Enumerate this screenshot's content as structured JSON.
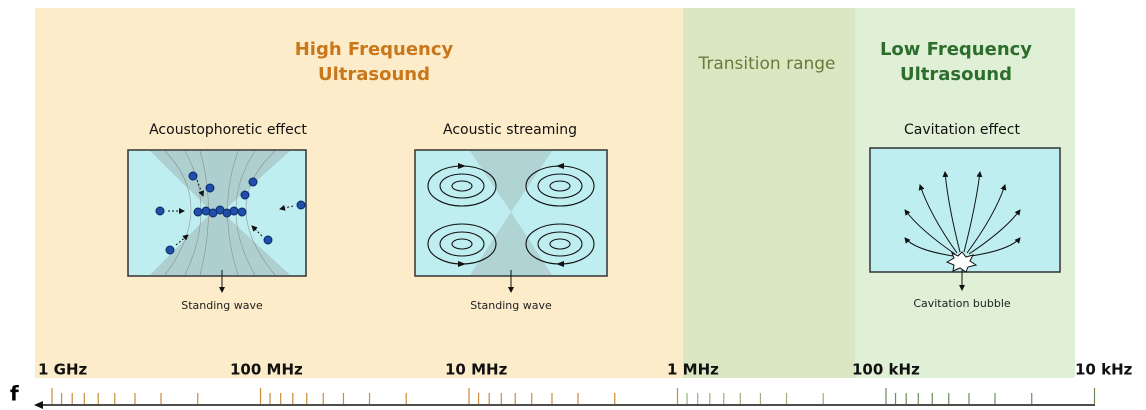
{
  "high_frequency": {
    "title": [
      "High Frequency",
      "Ultrasound"
    ],
    "panels": [
      {
        "title": "Acoustophoretic effect",
        "caption": "Standing wave"
      },
      {
        "title": "Acoustic streaming",
        "caption": "Standing wave"
      }
    ]
  },
  "transition": {
    "title": "Transition range"
  },
  "low_frequency": {
    "title": [
      "Low Frequency",
      "Ultrasound"
    ],
    "panels": [
      {
        "title": "Cavitation effect",
        "caption": "Cavitation bubble"
      }
    ]
  },
  "axis": {
    "symbol": "f",
    "labels": [
      "1 GHz",
      "100 MHz",
      "10 MHz",
      "1 MHz",
      "100 kHz",
      "10 kHz"
    ]
  }
}
